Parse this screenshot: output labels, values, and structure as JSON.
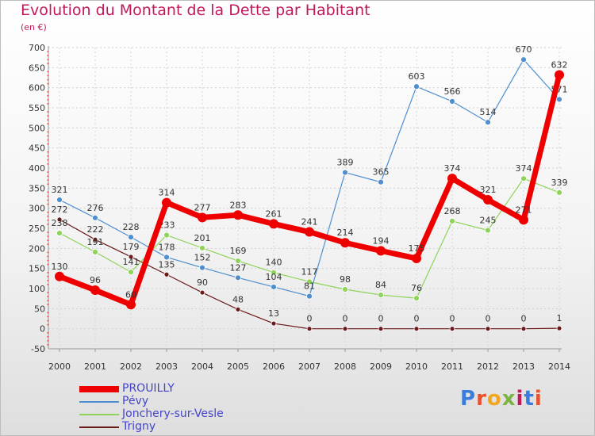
{
  "title": "Evolution du Montant de la Dette par Habitant",
  "unit": "(en €)",
  "logo": {
    "text": "Proxiti",
    "colors": [
      "#3b7ddd",
      "#e8502e",
      "#f2a71b",
      "#7cb342",
      "#c2185b",
      "#3b7ddd",
      "#e8502e"
    ]
  },
  "chart_data": {
    "type": "line",
    "x": [
      "2000",
      "2001",
      "2002",
      "2003",
      "2004",
      "2005",
      "2006",
      "2007",
      "2008",
      "2009",
      "2010",
      "2011",
      "2012",
      "2013",
      "2014"
    ],
    "ylim": [
      -50,
      700
    ],
    "yticks": [
      -50,
      0,
      50,
      100,
      150,
      200,
      250,
      300,
      350,
      400,
      450,
      500,
      550,
      600,
      650,
      700
    ],
    "grid": true,
    "legend_position": "bottom-left",
    "series": [
      {
        "name": "Trigny",
        "color": "#6b1a1a",
        "width": 1.2,
        "marker": 3,
        "values": [
          272,
          222,
          179,
          135,
          90,
          48,
          13,
          0,
          0,
          0,
          0,
          0,
          0,
          0,
          1
        ],
        "labels": [
          "272",
          "222",
          "179",
          "135",
          "90",
          "48",
          "13",
          "0",
          "0",
          "0",
          "0",
          "0",
          "0",
          "0",
          "1"
        ]
      },
      {
        "name": "Jonchery-sur-Vesle",
        "color": "#8fd35a",
        "width": 1.2,
        "marker": 3.5,
        "values": [
          238,
          191,
          141,
          233,
          201,
          169,
          140,
          117,
          98,
          84,
          76,
          268,
          245,
          374,
          339
        ],
        "labels": [
          "238",
          "191",
          "141",
          "233",
          "201",
          "169",
          "140",
          "117",
          "98",
          "84",
          "76",
          "268",
          "245",
          "374",
          "339"
        ]
      },
      {
        "name": "Pévy",
        "color": "#4f8fcf",
        "width": 1.2,
        "marker": 3.5,
        "values": [
          321,
          276,
          228,
          178,
          152,
          127,
          104,
          81,
          389,
          365,
          603,
          566,
          514,
          670,
          571
        ],
        "labels": [
          "321",
          "276",
          "228",
          "178",
          "152",
          "127",
          "104",
          "81",
          "389",
          "365",
          "603",
          "566",
          "514",
          "670",
          "571"
        ]
      },
      {
        "name": "PROUILLY",
        "color": "#ee0000",
        "width": 7,
        "marker": 6,
        "values": [
          130,
          96,
          60,
          314,
          277,
          283,
          261,
          241,
          214,
          194,
          175,
          374,
          321,
          271,
          632
        ],
        "labels": [
          "130",
          "96",
          "60",
          "314",
          "277",
          "283",
          "261",
          "241",
          "214",
          "194",
          "175",
          "374",
          "321",
          "271",
          "632"
        ]
      }
    ],
    "legend_order": [
      "PROUILLY",
      "Pévy",
      "Jonchery-sur-Vesle",
      "Trigny"
    ]
  }
}
